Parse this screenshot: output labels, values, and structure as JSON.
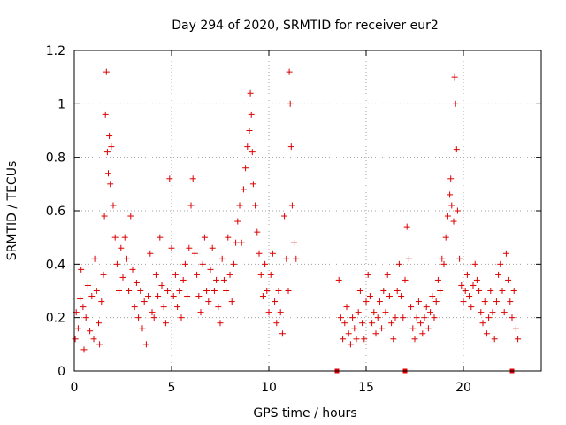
{
  "chart_data": {
    "type": "scatter",
    "title": "Day 294 of 2020, SRMTID for receiver eur2",
    "xlabel": "GPS time / hours",
    "ylabel": "SRMTID / TECUs",
    "xlim": [
      0,
      24
    ],
    "ylim": [
      0,
      1.2
    ],
    "x_ticks": [
      {
        "value": 0,
        "label": "0"
      },
      {
        "value": 5,
        "label": "5"
      },
      {
        "value": 10,
        "label": "10"
      },
      {
        "value": 15,
        "label": "15"
      },
      {
        "value": 20,
        "label": "20"
      }
    ],
    "y_ticks": [
      {
        "value": 0,
        "label": "0"
      },
      {
        "value": 0.2,
        "label": "0.2"
      },
      {
        "value": 0.4,
        "label": "0.4"
      },
      {
        "value": 0.6,
        "label": "0.6"
      },
      {
        "value": 0.8,
        "label": "0.8"
      },
      {
        "value": 1.0,
        "label": "1"
      },
      {
        "value": 1.2,
        "label": "1.2"
      }
    ],
    "grid": true,
    "series": [
      {
        "name": "SRMTID",
        "color": "#dd0000",
        "marker": "plus",
        "envelope_hint": "approx. points along GPS time (hours, TECU)",
        "points": [
          [
            0.05,
            0.12
          ],
          [
            0.1,
            0.22
          ],
          [
            0.2,
            0.16
          ],
          [
            0.3,
            0.27
          ],
          [
            0.35,
            0.38
          ],
          [
            0.45,
            0.24
          ],
          [
            0.5,
            0.08
          ],
          [
            0.6,
            0.2
          ],
          [
            0.7,
            0.32
          ],
          [
            0.8,
            0.15
          ],
          [
            0.9,
            0.28
          ],
          [
            1.0,
            0.12
          ],
          [
            1.05,
            0.42
          ],
          [
            1.15,
            0.3
          ],
          [
            1.25,
            0.18
          ],
          [
            1.3,
            0.1
          ],
          [
            1.4,
            0.26
          ],
          [
            1.5,
            0.36
          ],
          [
            1.55,
            0.58
          ],
          [
            1.6,
            0.96
          ],
          [
            1.65,
            1.12
          ],
          [
            1.7,
            0.82
          ],
          [
            1.75,
            0.74
          ],
          [
            1.8,
            0.88
          ],
          [
            1.85,
            0.7
          ],
          [
            1.9,
            0.84
          ],
          [
            2.0,
            0.62
          ],
          [
            2.1,
            0.5
          ],
          [
            2.2,
            0.4
          ],
          [
            2.3,
            0.3
          ],
          [
            2.4,
            0.46
          ],
          [
            2.5,
            0.35
          ],
          [
            2.6,
            0.5
          ],
          [
            2.7,
            0.42
          ],
          [
            2.8,
            0.3
          ],
          [
            2.9,
            0.58
          ],
          [
            3.0,
            0.38
          ],
          [
            3.1,
            0.24
          ],
          [
            3.2,
            0.33
          ],
          [
            3.3,
            0.2
          ],
          [
            3.4,
            0.3
          ],
          [
            3.5,
            0.16
          ],
          [
            3.6,
            0.26
          ],
          [
            3.7,
            0.1
          ],
          [
            3.8,
            0.28
          ],
          [
            3.9,
            0.44
          ],
          [
            4.0,
            0.22
          ],
          [
            4.1,
            0.2
          ],
          [
            4.2,
            0.36
          ],
          [
            4.3,
            0.28
          ],
          [
            4.4,
            0.5
          ],
          [
            4.5,
            0.32
          ],
          [
            4.6,
            0.24
          ],
          [
            4.7,
            0.18
          ],
          [
            4.8,
            0.3
          ],
          [
            4.9,
            0.72
          ],
          [
            5.0,
            0.46
          ],
          [
            5.1,
            0.28
          ],
          [
            5.2,
            0.36
          ],
          [
            5.3,
            0.24
          ],
          [
            5.4,
            0.3
          ],
          [
            5.5,
            0.2
          ],
          [
            5.6,
            0.34
          ],
          [
            5.7,
            0.4
          ],
          [
            5.8,
            0.28
          ],
          [
            5.9,
            0.46
          ],
          [
            6.0,
            0.62
          ],
          [
            6.1,
            0.72
          ],
          [
            6.2,
            0.44
          ],
          [
            6.3,
            0.36
          ],
          [
            6.4,
            0.28
          ],
          [
            6.5,
            0.22
          ],
          [
            6.6,
            0.4
          ],
          [
            6.7,
            0.5
          ],
          [
            6.8,
            0.3
          ],
          [
            6.9,
            0.26
          ],
          [
            7.0,
            0.38
          ],
          [
            7.1,
            0.46
          ],
          [
            7.2,
            0.3
          ],
          [
            7.3,
            0.34
          ],
          [
            7.4,
            0.24
          ],
          [
            7.5,
            0.18
          ],
          [
            7.6,
            0.42
          ],
          [
            7.7,
            0.34
          ],
          [
            7.8,
            0.3
          ],
          [
            7.9,
            0.5
          ],
          [
            8.0,
            0.36
          ],
          [
            8.1,
            0.26
          ],
          [
            8.2,
            0.4
          ],
          [
            8.3,
            0.48
          ],
          [
            8.4,
            0.56
          ],
          [
            8.5,
            0.62
          ],
          [
            8.6,
            0.48
          ],
          [
            8.7,
            0.68
          ],
          [
            8.8,
            0.76
          ],
          [
            8.9,
            0.84
          ],
          [
            9.0,
            0.9
          ],
          [
            9.05,
            1.04
          ],
          [
            9.1,
            0.96
          ],
          [
            9.15,
            0.82
          ],
          [
            9.2,
            0.7
          ],
          [
            9.3,
            0.62
          ],
          [
            9.4,
            0.52
          ],
          [
            9.5,
            0.44
          ],
          [
            9.6,
            0.36
          ],
          [
            9.7,
            0.28
          ],
          [
            9.8,
            0.4
          ],
          [
            9.9,
            0.3
          ],
          [
            10.0,
            0.22
          ],
          [
            10.1,
            0.36
          ],
          [
            10.2,
            0.44
          ],
          [
            10.3,
            0.26
          ],
          [
            10.4,
            0.18
          ],
          [
            10.5,
            0.3
          ],
          [
            10.6,
            0.22
          ],
          [
            10.7,
            0.14
          ],
          [
            10.8,
            0.58
          ],
          [
            10.9,
            0.42
          ],
          [
            11.0,
            0.3
          ],
          [
            11.05,
            1.12
          ],
          [
            11.1,
            1.0
          ],
          [
            11.15,
            0.84
          ],
          [
            11.2,
            0.62
          ],
          [
            11.3,
            0.48
          ],
          [
            11.4,
            0.42
          ],
          [
            13.6,
            0.34
          ],
          [
            13.7,
            0.2
          ],
          [
            13.8,
            0.12
          ],
          [
            13.9,
            0.18
          ],
          [
            14.0,
            0.24
          ],
          [
            14.1,
            0.14
          ],
          [
            14.2,
            0.1
          ],
          [
            14.3,
            0.2
          ],
          [
            14.4,
            0.16
          ],
          [
            14.5,
            0.12
          ],
          [
            14.6,
            0.22
          ],
          [
            14.7,
            0.3
          ],
          [
            14.8,
            0.18
          ],
          [
            14.9,
            0.12
          ],
          [
            15.0,
            0.26
          ],
          [
            15.1,
            0.36
          ],
          [
            15.2,
            0.28
          ],
          [
            15.3,
            0.18
          ],
          [
            15.4,
            0.22
          ],
          [
            15.5,
            0.14
          ],
          [
            15.6,
            0.2
          ],
          [
            15.7,
            0.26
          ],
          [
            15.8,
            0.16
          ],
          [
            15.9,
            0.3
          ],
          [
            16.0,
            0.22
          ],
          [
            16.1,
            0.36
          ],
          [
            16.2,
            0.28
          ],
          [
            16.3,
            0.18
          ],
          [
            16.4,
            0.12
          ],
          [
            16.5,
            0.2
          ],
          [
            16.6,
            0.3
          ],
          [
            16.7,
            0.4
          ],
          [
            16.8,
            0.28
          ],
          [
            16.9,
            0.2
          ],
          [
            17.0,
            0.34
          ],
          [
            17.1,
            0.54
          ],
          [
            17.2,
            0.42
          ],
          [
            17.3,
            0.24
          ],
          [
            17.4,
            0.16
          ],
          [
            17.5,
            0.12
          ],
          [
            17.6,
            0.2
          ],
          [
            17.7,
            0.26
          ],
          [
            17.8,
            0.18
          ],
          [
            17.9,
            0.14
          ],
          [
            18.0,
            0.2
          ],
          [
            18.1,
            0.24
          ],
          [
            18.2,
            0.16
          ],
          [
            18.3,
            0.22
          ],
          [
            18.4,
            0.28
          ],
          [
            18.5,
            0.2
          ],
          [
            18.6,
            0.26
          ],
          [
            18.7,
            0.34
          ],
          [
            18.8,
            0.3
          ],
          [
            18.9,
            0.42
          ],
          [
            19.0,
            0.4
          ],
          [
            19.1,
            0.5
          ],
          [
            19.2,
            0.58
          ],
          [
            19.3,
            0.66
          ],
          [
            19.35,
            0.72
          ],
          [
            19.4,
            0.62
          ],
          [
            19.5,
            0.56
          ],
          [
            19.55,
            1.1
          ],
          [
            19.6,
            1.0
          ],
          [
            19.65,
            0.83
          ],
          [
            19.7,
            0.6
          ],
          [
            19.8,
            0.42
          ],
          [
            19.9,
            0.32
          ],
          [
            20.0,
            0.26
          ],
          [
            20.1,
            0.3
          ],
          [
            20.2,
            0.36
          ],
          [
            20.3,
            0.28
          ],
          [
            20.4,
            0.24
          ],
          [
            20.5,
            0.32
          ],
          [
            20.6,
            0.4
          ],
          [
            20.7,
            0.34
          ],
          [
            20.8,
            0.3
          ],
          [
            20.9,
            0.22
          ],
          [
            21.0,
            0.18
          ],
          [
            21.1,
            0.26
          ],
          [
            21.2,
            0.14
          ],
          [
            21.3,
            0.2
          ],
          [
            21.4,
            0.3
          ],
          [
            21.5,
            0.22
          ],
          [
            21.6,
            0.12
          ],
          [
            21.7,
            0.26
          ],
          [
            21.8,
            0.36
          ],
          [
            21.9,
            0.4
          ],
          [
            22.0,
            0.3
          ],
          [
            22.1,
            0.22
          ],
          [
            22.2,
            0.44
          ],
          [
            22.3,
            0.34
          ],
          [
            22.4,
            0.26
          ],
          [
            22.5,
            0.2
          ],
          [
            22.6,
            0.3
          ],
          [
            22.7,
            0.16
          ],
          [
            22.8,
            0.12
          ]
        ]
      }
    ],
    "baseline_markers": [
      13.5,
      17.0,
      22.5
    ]
  }
}
